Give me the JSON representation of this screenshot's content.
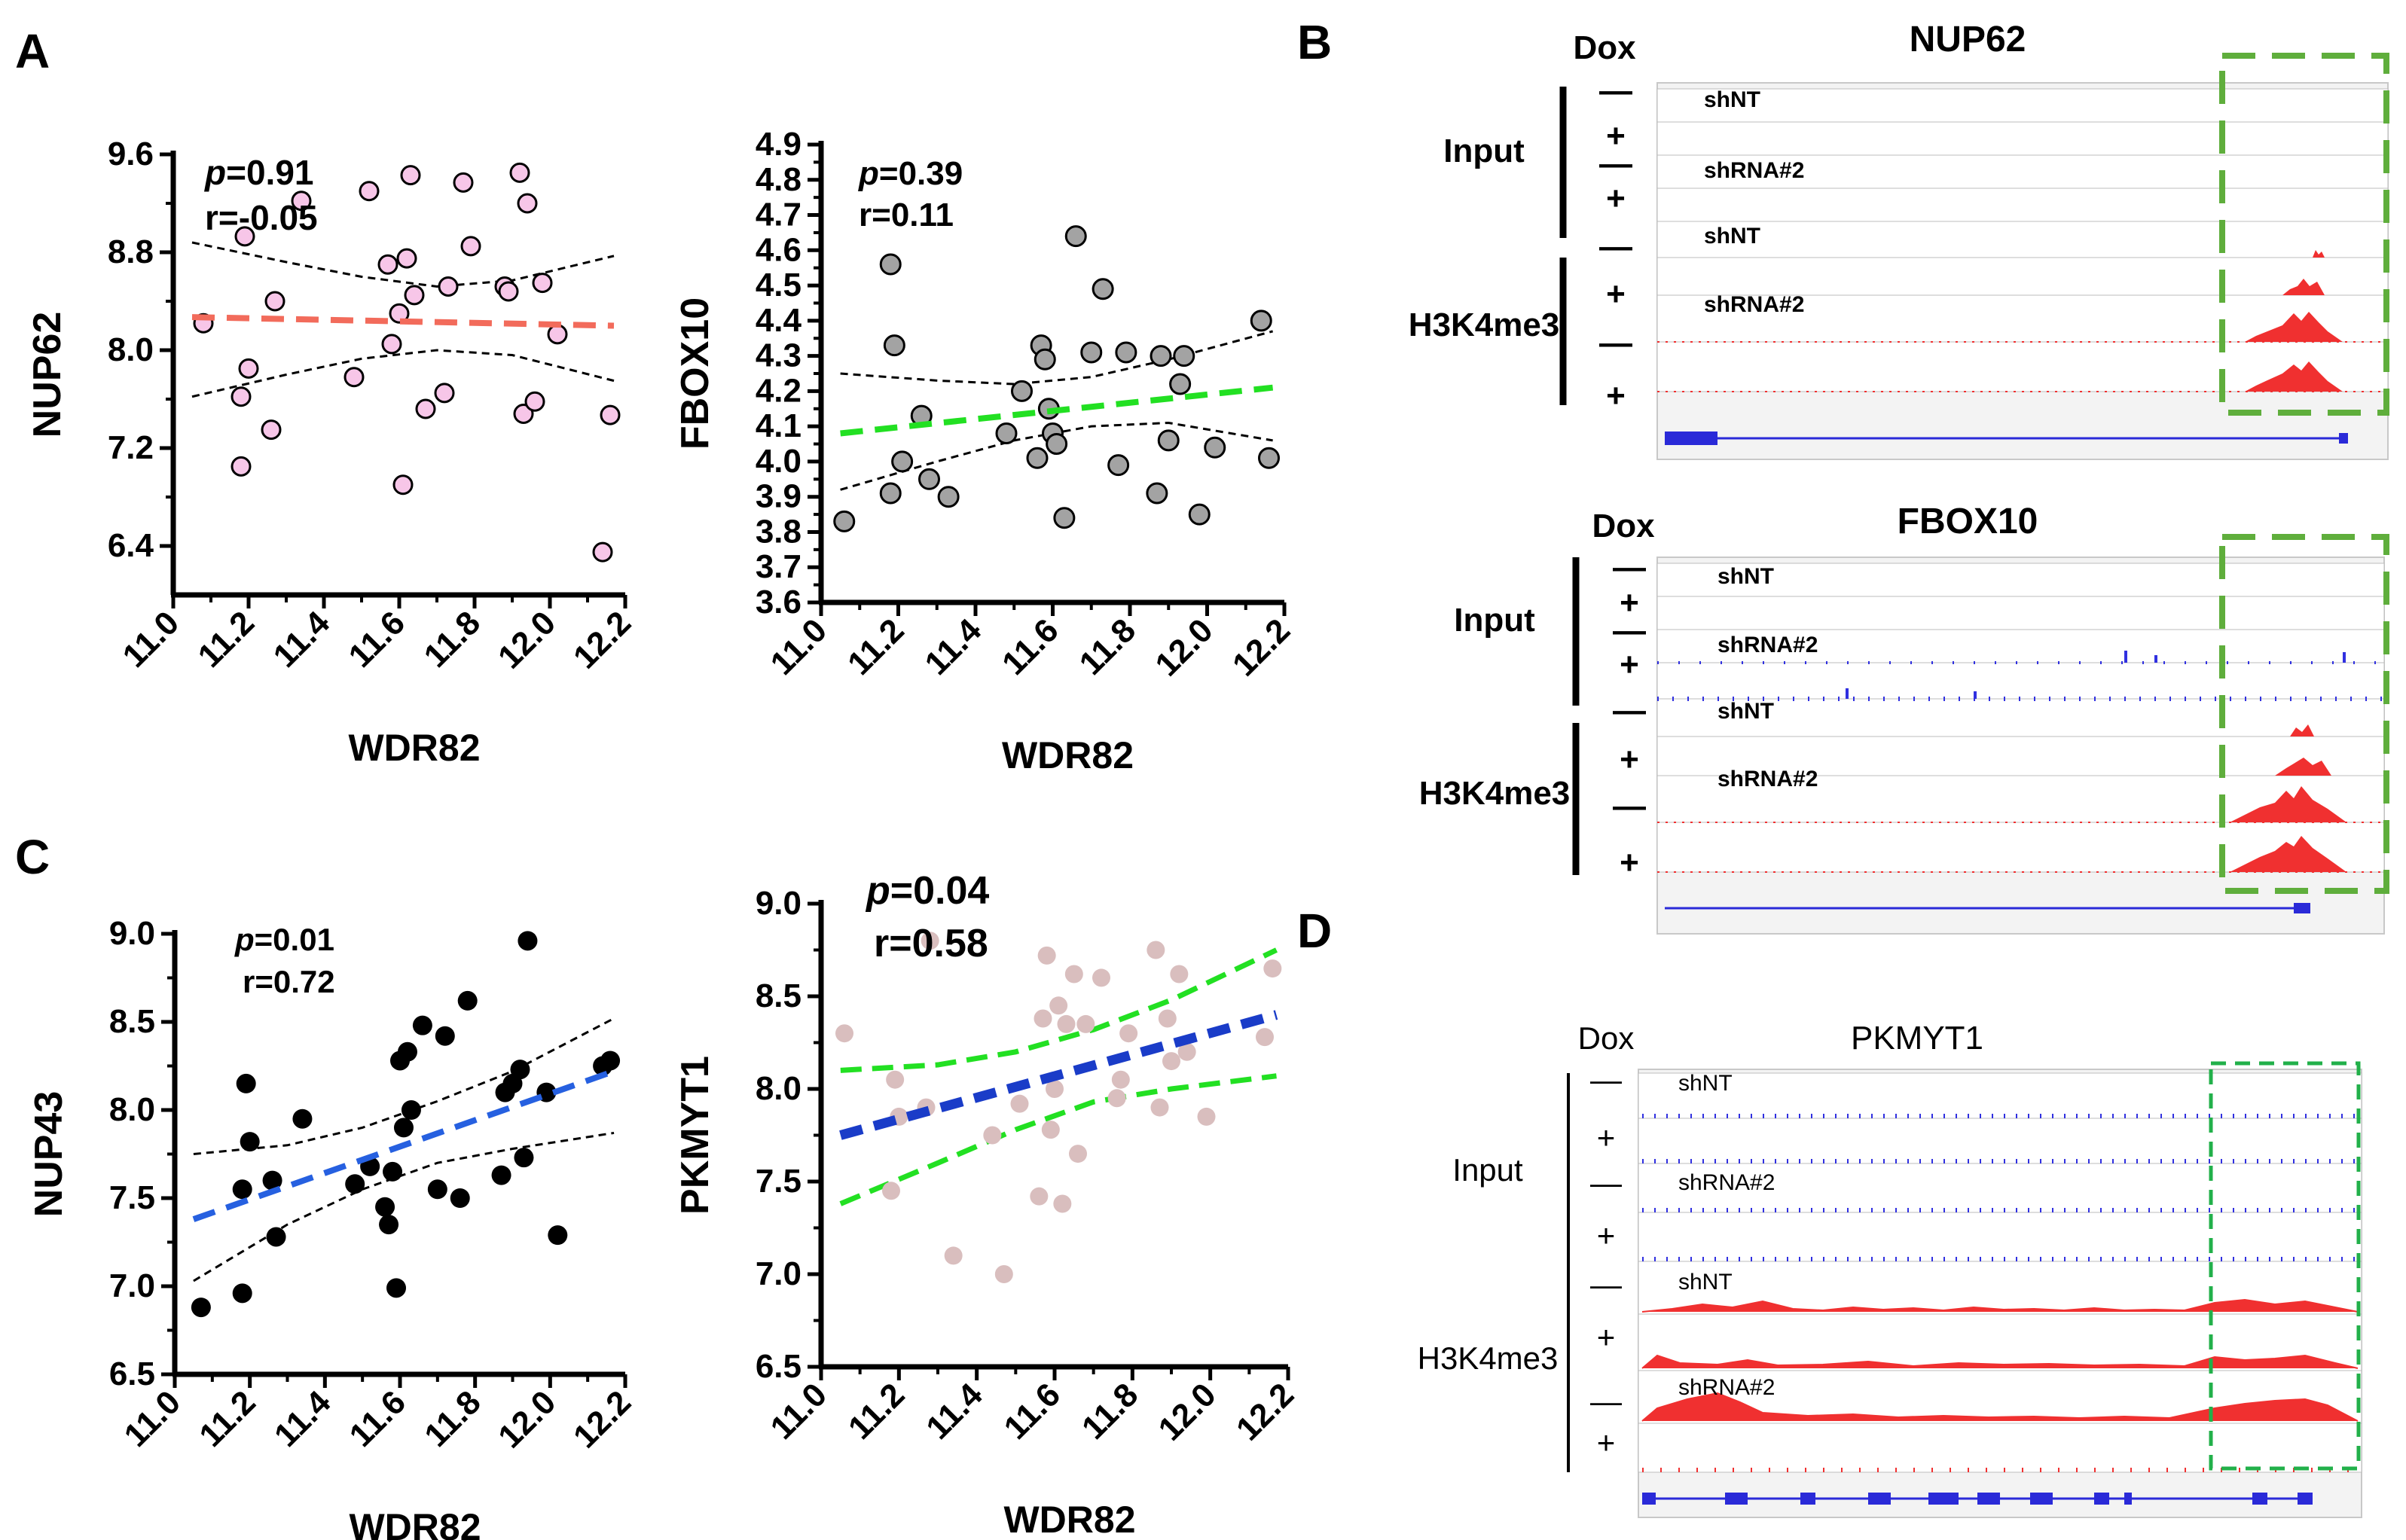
{
  "panel_labels": {
    "a": "A",
    "b": "B",
    "c": "C",
    "d": "D"
  },
  "colors": {
    "pink_fill": "#F7C6E8",
    "gray_fill": "#A3A3A3",
    "black_fill": "#000000",
    "rose_fill": "#D9BEBE",
    "red_line": "#F26B5B",
    "green_line": "#22E022",
    "blue_line": "#2660E0",
    "navy_line": "#1A3CC8",
    "box_green": "#5FAE3C",
    "box_green_d": "#22B04A",
    "signal_red": "#F03030",
    "signal_blue": "#3030E0"
  },
  "chart_data": [
    {
      "id": "A1",
      "type": "scatter",
      "title": "",
      "xlabel": "WDR82",
      "ylabel": "NUP62",
      "xlim": [
        11.0,
        12.2
      ],
      "ylim": [
        6.0,
        9.6
      ],
      "xticks": [
        "11.0",
        "11.2",
        "11.4",
        "11.6",
        "11.8",
        "12.0",
        "12.2"
      ],
      "yticks": [
        "6.4",
        "7.2",
        "8.0",
        "8.8",
        "9.6"
      ],
      "stat_p": "=0.91",
      "stat_r": "r=-0.05",
      "fit": {
        "x": [
          11.05,
          12.17
        ],
        "y": [
          8.27,
          8.2
        ]
      },
      "ci_upper": {
        "x": [
          11.05,
          11.3,
          11.5,
          11.7,
          11.9,
          12.17
        ],
        "y": [
          8.88,
          8.72,
          8.6,
          8.52,
          8.57,
          8.77
        ]
      },
      "ci_lower": {
        "x": [
          11.05,
          11.3,
          11.5,
          11.7,
          11.9,
          12.17
        ],
        "y": [
          7.62,
          7.8,
          7.93,
          8.0,
          7.96,
          7.75
        ]
      },
      "points": {
        "x": [
          11.08,
          11.18,
          11.19,
          11.2,
          11.18,
          11.26,
          11.27,
          11.34,
          11.48,
          11.52,
          11.57,
          11.58,
          11.6,
          11.61,
          11.62,
          11.63,
          11.64,
          11.67,
          11.72,
          11.73,
          11.77,
          11.79,
          11.88,
          11.89,
          11.92,
          11.93,
          11.94,
          11.96,
          11.98,
          12.02,
          12.14,
          12.16
        ],
        "y": [
          8.22,
          7.62,
          8.93,
          7.85,
          7.05,
          7.35,
          8.4,
          9.22,
          7.78,
          9.3,
          8.7,
          8.05,
          8.3,
          6.9,
          8.75,
          9.43,
          8.45,
          7.52,
          7.65,
          8.52,
          9.37,
          8.85,
          8.52,
          8.48,
          9.45,
          7.48,
          9.2,
          7.58,
          8.55,
          8.13,
          6.35,
          7.47
        ]
      },
      "point_fill": "#F7C6E8",
      "fit_color": "#F26B5B",
      "ci_color": "#000000"
    },
    {
      "id": "A2",
      "type": "scatter",
      "title": "",
      "xlabel": "WDR82",
      "ylabel": "FBOX10",
      "xlim": [
        11.0,
        12.2
      ],
      "ylim": [
        3.6,
        4.9
      ],
      "xticks": [
        "11.0",
        "11.2",
        "11.4",
        "11.6",
        "11.8",
        "12.0",
        "12.2"
      ],
      "yticks": [
        "3.6",
        "3.7",
        "3.8",
        "3.9",
        "4.0",
        "4.1",
        "4.2",
        "4.3",
        "4.4",
        "4.5",
        "4.6",
        "4.7",
        "4.8",
        "4.9"
      ],
      "stat_p": "=0.39",
      "stat_r": "r=0.11",
      "fit": {
        "x": [
          11.05,
          12.17
        ],
        "y": [
          4.08,
          4.21
        ]
      },
      "ci_upper": {
        "x": [
          11.05,
          11.3,
          11.5,
          11.7,
          11.9,
          12.17
        ],
        "y": [
          4.25,
          4.23,
          4.22,
          4.24,
          4.29,
          4.37
        ]
      },
      "ci_lower": {
        "x": [
          11.05,
          11.3,
          11.5,
          11.7,
          11.9,
          12.17
        ],
        "y": [
          3.92,
          4.0,
          4.06,
          4.1,
          4.11,
          4.06
        ]
      },
      "points": {
        "x": [
          11.06,
          11.18,
          11.18,
          11.19,
          11.21,
          11.26,
          11.28,
          11.33,
          11.48,
          11.52,
          11.56,
          11.57,
          11.58,
          11.59,
          11.6,
          11.61,
          11.63,
          11.66,
          11.7,
          11.73,
          11.77,
          11.79,
          11.87,
          11.88,
          11.9,
          11.93,
          11.94,
          11.98,
          12.02,
          12.14,
          12.16
        ],
        "y": [
          3.83,
          3.91,
          4.56,
          4.33,
          4.0,
          4.13,
          3.95,
          3.9,
          4.08,
          4.2,
          4.01,
          4.33,
          4.29,
          4.15,
          4.08,
          4.05,
          3.84,
          4.64,
          4.31,
          4.49,
          3.99,
          4.31,
          3.91,
          4.3,
          4.06,
          4.22,
          4.3,
          3.85,
          4.04,
          4.4,
          4.01
        ]
      },
      "point_fill": "#A3A3A3",
      "fit_color": "#22E022",
      "ci_color": "#000000"
    },
    {
      "id": "C1",
      "type": "scatter",
      "title": "",
      "xlabel": "WDR82",
      "ylabel": "NUP43",
      "xlim": [
        11.0,
        12.2
      ],
      "ylim": [
        6.5,
        9.0
      ],
      "xticks": [
        "11.0",
        "11.2",
        "11.4",
        "11.6",
        "11.8",
        "12.0",
        "12.2"
      ],
      "yticks": [
        "6.5",
        "7.0",
        "7.5",
        "8.0",
        "8.5",
        "9.0"
      ],
      "stat_p": "=0.01",
      "stat_r": "r=0.72",
      "fit": {
        "x": [
          11.05,
          12.17
        ],
        "y": [
          7.38,
          8.22
        ]
      },
      "ci_upper": {
        "x": [
          11.05,
          11.3,
          11.5,
          11.7,
          11.9,
          12.17
        ],
        "y": [
          7.75,
          7.8,
          7.9,
          8.05,
          8.22,
          8.52
        ]
      },
      "ci_lower": {
        "x": [
          11.05,
          11.3,
          11.5,
          11.7,
          11.9,
          12.17
        ],
        "y": [
          7.03,
          7.35,
          7.55,
          7.7,
          7.78,
          7.87
        ]
      },
      "points": {
        "x": [
          11.07,
          11.18,
          11.18,
          11.19,
          11.2,
          11.26,
          11.27,
          11.34,
          11.48,
          11.52,
          11.56,
          11.57,
          11.58,
          11.59,
          11.6,
          11.61,
          11.62,
          11.63,
          11.66,
          11.7,
          11.72,
          11.76,
          11.78,
          11.87,
          11.88,
          11.9,
          11.92,
          11.93,
          11.94,
          11.99,
          12.02,
          12.14,
          12.16
        ],
        "y": [
          6.88,
          6.96,
          7.55,
          8.15,
          7.82,
          7.6,
          7.28,
          7.95,
          7.58,
          7.68,
          7.45,
          7.35,
          7.65,
          6.99,
          8.28,
          7.9,
          8.33,
          8.0,
          8.48,
          7.55,
          8.42,
          7.5,
          8.62,
          7.63,
          8.1,
          8.15,
          8.23,
          7.73,
          8.96,
          8.1,
          7.29,
          8.25,
          8.28
        ]
      },
      "point_fill": "#000000",
      "fit_color": "#2660E0",
      "ci_color": "#000000"
    },
    {
      "id": "C2",
      "type": "scatter",
      "title": "",
      "xlabel": "WDR82",
      "ylabel": "PKMYT1",
      "xlim": [
        11.0,
        12.2
      ],
      "ylim": [
        6.5,
        9.0
      ],
      "xticks": [
        "11.0",
        "11.2",
        "11.4",
        "11.6",
        "11.8",
        "12.0",
        "12.2"
      ],
      "yticks": [
        "6.5",
        "7.0",
        "7.5",
        "8.0",
        "8.5",
        "9.0"
      ],
      "stat_p": "=0.04",
      "stat_r": "r=0.58",
      "fit": {
        "x": [
          11.05,
          12.17
        ],
        "y": [
          7.75,
          8.4
        ]
      },
      "ci_upper": {
        "x": [
          11.05,
          11.3,
          11.5,
          11.7,
          11.9,
          12.17
        ],
        "y": [
          8.1,
          8.13,
          8.2,
          8.32,
          8.48,
          8.75
        ]
      },
      "ci_lower": {
        "x": [
          11.05,
          11.3,
          11.5,
          11.7,
          11.9,
          12.17
        ],
        "y": [
          7.38,
          7.6,
          7.78,
          7.93,
          8.0,
          8.07
        ]
      },
      "points": {
        "x": [
          11.06,
          11.18,
          11.19,
          11.2,
          11.27,
          11.28,
          11.34,
          11.44,
          11.47,
          11.51,
          11.56,
          11.57,
          11.58,
          11.59,
          11.6,
          11.61,
          11.62,
          11.63,
          11.65,
          11.66,
          11.68,
          11.72,
          11.76,
          11.77,
          11.79,
          11.86,
          11.87,
          11.89,
          11.9,
          11.92,
          11.94,
          11.99,
          12.14,
          12.16
        ],
        "y": [
          8.3,
          7.45,
          8.05,
          7.85,
          7.9,
          8.8,
          7.1,
          7.75,
          7.0,
          7.92,
          7.42,
          8.38,
          8.72,
          7.78,
          8.0,
          8.45,
          7.38,
          8.35,
          8.62,
          7.65,
          8.35,
          8.6,
          7.95,
          8.05,
          8.3,
          8.75,
          7.9,
          8.38,
          8.15,
          8.62,
          8.2,
          7.85,
          8.28,
          8.65
        ]
      },
      "point_fill": "#D9BEBE",
      "fit_color": "#1A3CC8",
      "ci_color": "#22E022"
    }
  ],
  "tracks": {
    "B1": {
      "gene": "NUP62",
      "dox": "Dox",
      "input": "Input",
      "mark": "H3K4me3",
      "shnt1": "shNT",
      "shrna1": "shRNA#2",
      "shnt2": "shNT",
      "shrna2": "shRNA#2",
      "signs": [
        "—",
        "+",
        "—",
        "+",
        "—",
        "+",
        "—",
        "+"
      ]
    },
    "B2": {
      "gene": "FBOX10",
      "dox": "Dox",
      "input": "Input",
      "mark": "H3K4me3",
      "shnt1": "shNT",
      "shrna1": "shRNA#2",
      "shnt2": "shNT",
      "shrna2": "shRNA#2",
      "signs": [
        "—",
        "+",
        "—",
        "+",
        "—",
        "+",
        "—",
        "+"
      ]
    },
    "D": {
      "gene": "PKMYT1",
      "dox": "Dox",
      "input": "Input",
      "mark": "H3K4me3",
      "shnt1": "shNT",
      "shrna1": "shRNA#2",
      "shnt2": "shNT",
      "shrna2": "shRNA#2",
      "signs": [
        "—",
        "+",
        "—",
        "+",
        "—",
        "+",
        "—",
        "+"
      ]
    }
  }
}
